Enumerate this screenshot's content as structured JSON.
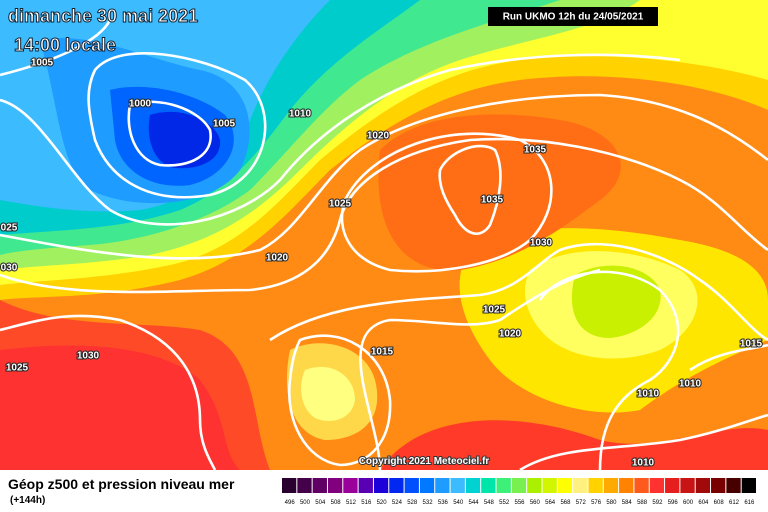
{
  "header": {
    "date": "dimanche 30 mai 2021",
    "time": "14:00 locale",
    "run": "Run UKMO 12h du 24/05/2021"
  },
  "copyright": "Copyright 2021 Meteociel.fr",
  "footer": {
    "title": "Géop z500 et pression niveau mer",
    "lead": "(+144h)"
  },
  "isobar_labels": [
    "1005",
    "1000",
    "1005",
    "1010",
    "1020",
    "1025",
    "1020",
    "025",
    "030",
    "1030",
    "1025",
    "1035",
    "1035",
    "1030",
    "1025",
    "1020",
    "1015",
    "1010",
    "1010",
    "1015",
    "1010"
  ],
  "colorbar": {
    "labels": [
      496,
      500,
      504,
      508,
      512,
      516,
      520,
      524,
      528,
      532,
      536,
      540,
      544,
      548,
      552,
      556,
      560,
      564,
      568,
      572,
      576,
      580,
      584,
      588,
      592,
      596,
      600,
      604,
      608,
      612,
      616
    ],
    "colors": [
      "#2a0030",
      "#45004a",
      "#600064",
      "#80007e",
      "#9a009a",
      "#5a00b4",
      "#1e00d8",
      "#0028f0",
      "#0050ff",
      "#0078ff",
      "#1e9cff",
      "#3cbcff",
      "#00d2d2",
      "#00e6aa",
      "#3cf078",
      "#78f050",
      "#aaf000",
      "#d2f500",
      "#ffff00",
      "#fff080",
      "#ffd200",
      "#ffaa00",
      "#ff8200",
      "#ff5a1e",
      "#ff3232",
      "#e61e1e",
      "#c81414",
      "#a00a0a",
      "#780000",
      "#460000",
      "#000000"
    ]
  }
}
